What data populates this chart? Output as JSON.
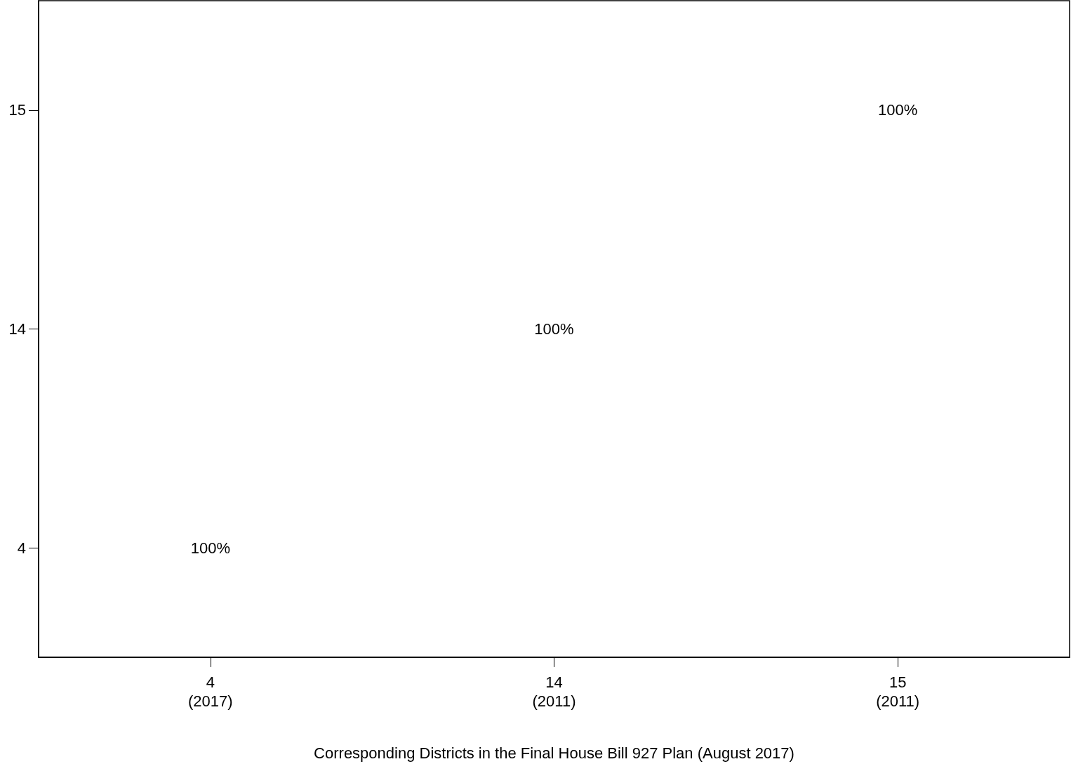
{
  "chart_data": {
    "type": "heatmap",
    "xlabel": "Corresponding Districts in the Final House Bill 927 Plan (August 2017)",
    "categories": [
      "4\n(2017)",
      "14\n(2011)",
      "15\n(2011)"
    ],
    "y_categories": [
      "15",
      "14",
      "4"
    ],
    "cells": [
      [
        null,
        null,
        100
      ],
      [
        null,
        100,
        null
      ],
      [
        100,
        null,
        null
      ]
    ],
    "cell_labels": [
      [
        null,
        null,
        "100%"
      ],
      [
        null,
        "100%",
        null
      ],
      [
        "100%",
        null,
        null
      ]
    ],
    "grid": false
  }
}
